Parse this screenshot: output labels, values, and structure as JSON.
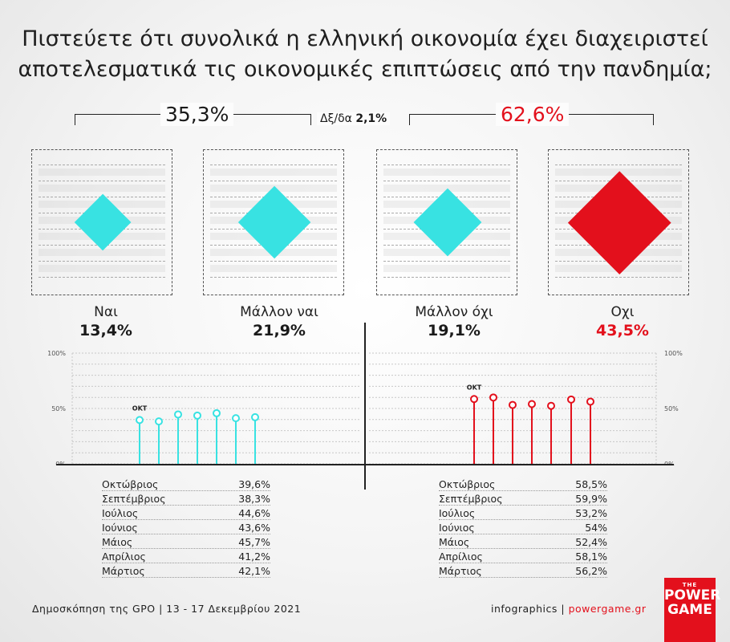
{
  "title": {
    "line1": "Πιστεύετε ότι συνολικά η ελληνική οικονομία έχει διαχειριστεί",
    "line2": "αποτελεσματικά τις οικονομικές επιπτώσεις από την πανδημία;"
  },
  "totals": {
    "yes": "35,3%",
    "no": "62,6%",
    "dk_label": "Δξ/δα",
    "dk_value": "2,1%"
  },
  "colors": {
    "cyan": "#38e2e2",
    "red": "#e3101c",
    "text": "#1a1a1a"
  },
  "chart_data": [
    {
      "type": "bar",
      "categories": [
        "Ναι",
        "Μάλλον ναι",
        "Μάλλον όχι",
        "Οχι"
      ],
      "values": [
        13.4,
        21.9,
        19.1,
        43.5
      ],
      "value_labels": [
        "13,4%",
        "21,9%",
        "19,1%",
        "43,5%"
      ]
    },
    {
      "type": "scatter",
      "series": [
        {
          "name": "Ναι",
          "x": [
            "Οκτώβριος",
            "Σεπτέμβριος",
            "Ιούλιος",
            "Ιούνιος",
            "Μάιος",
            "Απρίλιος",
            "Μάρτιος"
          ],
          "values": [
            39.6,
            38.3,
            44.6,
            43.6,
            45.7,
            41.2,
            42.1
          ],
          "value_labels": [
            "39,6%",
            "38,3%",
            "44,6%",
            "43,6%",
            "45,7%",
            "41,2%",
            "42,1%"
          ],
          "marker_label": "ΟΚΤ"
        },
        {
          "name": "Οχι",
          "x": [
            "Οκτώβριος",
            "Σεπτέμβριος",
            "Ιούλιος",
            "Ιούνιος",
            "Μάιος",
            "Απρίλιος",
            "Μάρτιος"
          ],
          "values": [
            58.5,
            59.9,
            53.2,
            54,
            52.4,
            58.1,
            56.2
          ],
          "value_labels": [
            "58,5%",
            "59,9%",
            "53,2%",
            "54%",
            "52,4%",
            "58,1%",
            "56,2%"
          ],
          "marker_label": "ΟΚΤ"
        }
      ],
      "ylim": [
        0,
        100
      ],
      "yticks": [
        "0%",
        "50%",
        "100%"
      ],
      "grid": true
    }
  ],
  "footer": {
    "source": "Δημοσκόπηση της GPO | 13 - 17 Δεκεμβρίου 2021",
    "credit_prefix": "infographics | ",
    "credit_site": "powergame.gr"
  },
  "logo": {
    "the": "THE",
    "word1": "POWER",
    "word2": "GAME"
  }
}
